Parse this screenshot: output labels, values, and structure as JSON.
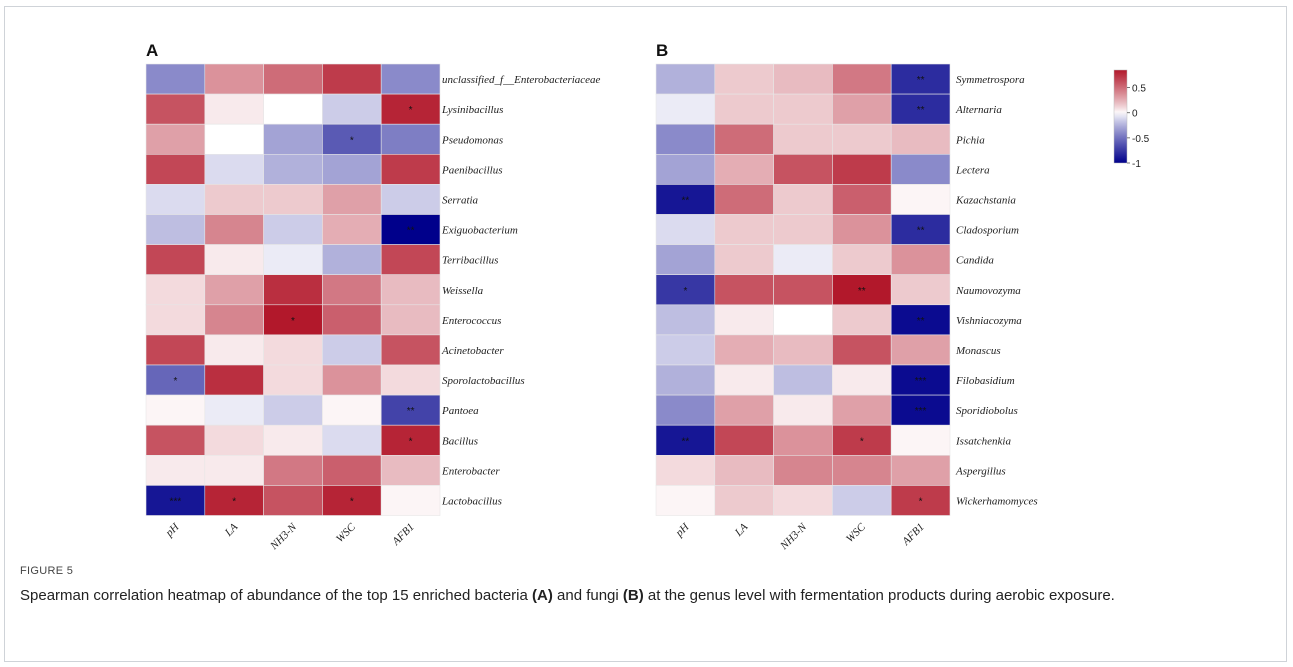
{
  "figure": {
    "label": "FIGURE 5",
    "caption_parts": [
      {
        "text": "Spearman correlation heatmap of abundance of the top 15 enriched bacteria ",
        "bold": false
      },
      {
        "text": "(A)",
        "bold": true
      },
      {
        "text": " and fungi ",
        "bold": false
      },
      {
        "text": "(B)",
        "bold": true
      },
      {
        "text": " at the genus level with fermentation products during aerobic exposure.",
        "bold": false
      }
    ]
  },
  "colors": {
    "negative": "#00008B",
    "zero": "#FFFFFF",
    "positive": "#B2182B"
  },
  "chart_data": [
    {
      "type": "heatmap",
      "panel": "A",
      "columns": [
        "pH",
        "LA",
        "NH3-N",
        "WSC",
        "AFB1"
      ],
      "rows": [
        "unclassified_f__Enterobacteriaceae",
        "Lysinibacillus",
        "Pseudomonas",
        "Paenibacillus",
        "Serratia",
        "Exiguobacterium",
        "Terribacillus",
        "Weissella",
        "Enterococcus",
        "Acinetobacter",
        "Sporolactobacillus",
        "Pantoea",
        "Bacillus",
        "Enterobacter",
        "Lactobacillus"
      ],
      "values": [
        [
          -0.4,
          0.35,
          0.5,
          0.7,
          -0.4
        ],
        [
          0.6,
          0.05,
          0.0,
          -0.15,
          0.8
        ],
        [
          0.3,
          0.0,
          -0.3,
          -0.6,
          -0.45
        ],
        [
          0.65,
          -0.1,
          -0.25,
          -0.3,
          0.7
        ],
        [
          -0.1,
          0.15,
          0.15,
          0.3,
          -0.15
        ],
        [
          -0.2,
          0.4,
          -0.15,
          0.25,
          -1.0
        ],
        [
          0.65,
          0.05,
          -0.05,
          -0.25,
          0.65
        ],
        [
          0.1,
          0.3,
          0.75,
          0.45,
          0.2
        ],
        [
          0.1,
          0.4,
          0.85,
          0.55,
          0.2
        ],
        [
          0.65,
          0.05,
          0.1,
          -0.15,
          0.6
        ],
        [
          -0.55,
          0.75,
          0.1,
          0.35,
          0.1
        ],
        [
          0.02,
          -0.05,
          -0.15,
          0.02,
          -0.7
        ],
        [
          0.6,
          0.1,
          0.05,
          -0.1,
          0.8
        ],
        [
          0.05,
          0.05,
          0.45,
          0.55,
          0.2
        ],
        [
          -0.9,
          0.8,
          0.6,
          0.8,
          0.02
        ]
      ],
      "significance": [
        [
          "",
          "",
          "",
          "",
          ""
        ],
        [
          "",
          "",
          "",
          "",
          "*"
        ],
        [
          "",
          "",
          "",
          "*",
          ""
        ],
        [
          "",
          "",
          "",
          "",
          ""
        ],
        [
          "",
          "",
          "",
          "",
          ""
        ],
        [
          "",
          "",
          "",
          "",
          "**"
        ],
        [
          "",
          "",
          "",
          "",
          ""
        ],
        [
          "",
          "",
          "",
          "",
          ""
        ],
        [
          "",
          "",
          "*",
          "",
          ""
        ],
        [
          "",
          "",
          "",
          "",
          ""
        ],
        [
          "*",
          "",
          "",
          "",
          ""
        ],
        [
          "",
          "",
          "",
          "",
          "**"
        ],
        [
          "",
          "",
          "",
          "",
          "*"
        ],
        [
          "",
          "",
          "",
          "",
          ""
        ],
        [
          "***",
          "*",
          "",
          "*",
          ""
        ]
      ]
    },
    {
      "type": "heatmap",
      "panel": "B",
      "columns": [
        "pH",
        "LA",
        "NH3-N",
        "WSC",
        "AFB1"
      ],
      "rows": [
        "Symmetrospora",
        "Alternaria",
        "Pichia",
        "Lectera",
        "Kazachstania",
        "Cladosporium",
        "Candida",
        "Naumovozyma",
        "Vishniacozyma",
        "Monascus",
        "Filobasidium",
        "Sporidiobolus",
        "Issatchenkia",
        "Aspergillus",
        "Wickerhamomyces"
      ],
      "values": [
        [
          -0.25,
          0.15,
          0.2,
          0.45,
          -0.8
        ],
        [
          -0.05,
          0.15,
          0.15,
          0.3,
          -0.8
        ],
        [
          -0.4,
          0.5,
          0.15,
          0.15,
          0.2
        ],
        [
          -0.3,
          0.25,
          0.6,
          0.7,
          -0.4
        ],
        [
          -0.9,
          0.5,
          0.15,
          0.55,
          0.02
        ],
        [
          -0.1,
          0.15,
          0.15,
          0.35,
          -0.8
        ],
        [
          -0.3,
          0.15,
          -0.05,
          0.15,
          0.35
        ],
        [
          -0.75,
          0.6,
          0.6,
          0.85,
          0.15
        ],
        [
          -0.2,
          0.05,
          0.0,
          0.15,
          -0.95
        ],
        [
          -0.15,
          0.25,
          0.2,
          0.6,
          0.3
        ],
        [
          -0.25,
          0.05,
          -0.2,
          0.05,
          -0.95
        ],
        [
          -0.4,
          0.3,
          0.05,
          0.3,
          -0.95
        ],
        [
          -0.9,
          0.65,
          0.35,
          0.7,
          0.02
        ],
        [
          0.1,
          0.2,
          0.4,
          0.4,
          0.3
        ],
        [
          0.02,
          0.15,
          0.1,
          -0.15,
          0.7
        ]
      ],
      "significance": [
        [
          "",
          "",
          "",
          "",
          "**"
        ],
        [
          "",
          "",
          "",
          "",
          "**"
        ],
        [
          "",
          "",
          "",
          "",
          ""
        ],
        [
          "",
          "",
          "",
          "",
          ""
        ],
        [
          "**",
          "",
          "",
          "",
          ""
        ],
        [
          "",
          "",
          "",
          "",
          "**"
        ],
        [
          "",
          "",
          "",
          "",
          ""
        ],
        [
          "*",
          "",
          "",
          "**",
          ""
        ],
        [
          "",
          "",
          "",
          "",
          "**"
        ],
        [
          "",
          "",
          "",
          "",
          ""
        ],
        [
          "",
          "",
          "",
          "",
          "***"
        ],
        [
          "",
          "",
          "",
          "",
          "***"
        ],
        [
          "**",
          "",
          "",
          "*",
          ""
        ],
        [
          "",
          "",
          "",
          "",
          ""
        ],
        [
          "",
          "",
          "",
          "",
          "*"
        ]
      ]
    }
  ],
  "legend": {
    "ticks": [
      {
        "label": "0.5",
        "value": 0.5
      },
      {
        "label": "0",
        "value": 0
      },
      {
        "label": "-0.5",
        "value": -0.5
      },
      {
        "label": "-1",
        "value": -1
      }
    ],
    "min": -1,
    "max": 0.85
  }
}
